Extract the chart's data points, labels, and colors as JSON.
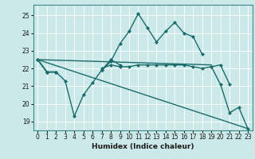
{
  "xlabel": "Humidex (Indice chaleur)",
  "bg_color": "#cce9e9",
  "line_color": "#1a6b6b",
  "grid_color": "#b0d8d8",
  "xlim": [
    -0.5,
    23.5
  ],
  "ylim": [
    18.5,
    25.6
  ],
  "yticks": [
    19,
    20,
    21,
    22,
    23,
    24,
    25
  ],
  "xticks": [
    0,
    1,
    2,
    3,
    4,
    5,
    6,
    7,
    8,
    9,
    10,
    11,
    12,
    13,
    14,
    15,
    16,
    17,
    18,
    19,
    20,
    21,
    22,
    23
  ],
  "series": [
    {
      "x": [
        0,
        1,
        2,
        3,
        4,
        5,
        6,
        7,
        8,
        9,
        10,
        11,
        12,
        13,
        14,
        15,
        16,
        17,
        18,
        19,
        20,
        21,
        22,
        23
      ],
      "y": [
        22.5,
        21.8,
        21.8,
        null,
        null,
        null,
        null,
        21.9,
        22.4,
        23.4,
        24.1,
        25.1,
        24.3,
        23.5,
        24.1,
        24.6,
        24.0,
        23.8,
        22.8,
        null,
        null,
        null,
        null,
        null
      ],
      "marker": true,
      "markersize": 2.5,
      "linewidth": 1.0
    },
    {
      "x": [
        0,
        1,
        2,
        3,
        4,
        5,
        6,
        7,
        8,
        9,
        10,
        11,
        12,
        13,
        14,
        15,
        16,
        17,
        18,
        19,
        20,
        21,
        22,
        23
      ],
      "y": [
        22.5,
        21.8,
        21.8,
        21.3,
        19.3,
        20.5,
        21.2,
        21.9,
        22.5,
        22.2,
        null,
        null,
        null,
        null,
        null,
        null,
        null,
        null,
        null,
        22.1,
        21.1,
        19.5,
        19.8,
        18.6
      ],
      "marker": true,
      "markersize": 2.5,
      "linewidth": 1.0
    },
    {
      "x": [
        0,
        1,
        2,
        3,
        4,
        5,
        6,
        7,
        8,
        9,
        10,
        11,
        12,
        13,
        14,
        15,
        16,
        17,
        18,
        19,
        20,
        21,
        22,
        23
      ],
      "y": [
        22.5,
        21.8,
        21.8,
        null,
        null,
        null,
        null,
        22.0,
        22.2,
        22.1,
        22.1,
        22.2,
        22.2,
        22.2,
        22.2,
        22.2,
        22.2,
        22.1,
        22.0,
        22.1,
        22.2,
        21.1,
        null,
        null
      ],
      "marker": true,
      "markersize": 2.5,
      "linewidth": 1.0
    },
    {
      "x": [
        0,
        19
      ],
      "y": [
        22.5,
        22.2
      ],
      "marker": false,
      "markersize": 0,
      "linewidth": 1.0
    },
    {
      "x": [
        0,
        23
      ],
      "y": [
        22.5,
        18.6
      ],
      "marker": false,
      "markersize": 0,
      "linewidth": 1.0
    }
  ]
}
